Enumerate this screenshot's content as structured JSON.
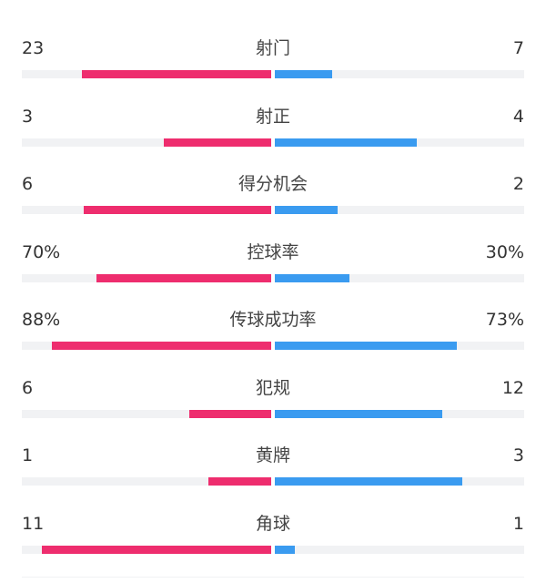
{
  "colors": {
    "home": "#ee2d6e",
    "away": "#3a9bf0",
    "track": "#f1f2f4"
  },
  "stats": [
    {
      "label": "射门",
      "home": "23",
      "away": "7",
      "home_fill": 0.76,
      "away_fill": 0.23
    },
    {
      "label": "射正",
      "home": "3",
      "away": "4",
      "home_fill": 0.43,
      "away_fill": 0.57
    },
    {
      "label": "得分机会",
      "home": "6",
      "away": "2",
      "home_fill": 0.75,
      "away_fill": 0.25
    },
    {
      "label": "控球率",
      "home": "70%",
      "away": "30%",
      "home_fill": 0.7,
      "away_fill": 0.3
    },
    {
      "label": "传球成功率",
      "home": "88%",
      "away": "73%",
      "home_fill": 0.88,
      "away_fill": 0.73
    },
    {
      "label": "犯规",
      "home": "6",
      "away": "12",
      "home_fill": 0.33,
      "away_fill": 0.67
    },
    {
      "label": "黄牌",
      "home": "1",
      "away": "3",
      "home_fill": 0.25,
      "away_fill": 0.75
    },
    {
      "label": "角球",
      "home": "11",
      "away": "1",
      "home_fill": 0.92,
      "away_fill": 0.08
    }
  ]
}
